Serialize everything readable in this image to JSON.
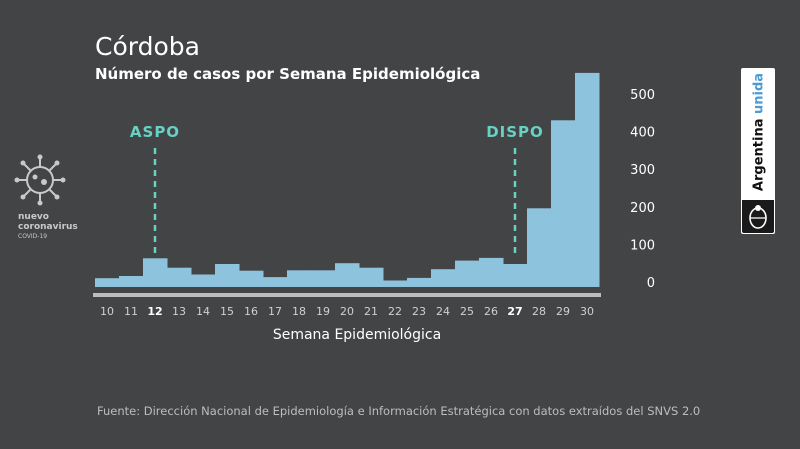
{
  "header": {
    "title": "Córdoba",
    "subtitle": "Número de casos por Semana Epidemiológica"
  },
  "logo": {
    "line1": "nuevo",
    "line2": "coronavirus",
    "line3": "COVID-19",
    "icon": "virus-icon"
  },
  "brand": {
    "word1": "Argentina",
    "word2": "unida",
    "seal_icon": "national-seal-icon"
  },
  "footer": {
    "source": "Fuente: Dirección Nacional de Epidemiología e Información Estratégica con datos extraídos del SNVS 2.0"
  },
  "colors": {
    "background": "#434446",
    "bar": "#8ec3dd",
    "axis": "#bdbdbd",
    "annotation": "#67d1c2"
  },
  "chart_data": {
    "type": "bar",
    "title": "Córdoba",
    "subtitle": "Número de casos por Semana Epidemiológica",
    "xlabel": "Semana Epidemiológica",
    "ylabel": "",
    "categories": [
      "10",
      "11",
      "12",
      "13",
      "14",
      "15",
      "16",
      "17",
      "18",
      "19",
      "20",
      "21",
      "22",
      "23",
      "24",
      "25",
      "26",
      "27",
      "28",
      "29",
      "30"
    ],
    "values": [
      10,
      16,
      63,
      38,
      20,
      48,
      30,
      13,
      31,
      31,
      50,
      38,
      4,
      11,
      34,
      57,
      64,
      48,
      196,
      430,
      556
    ],
    "y_ticks": [
      0,
      100,
      200,
      300,
      400,
      500
    ],
    "ylim": [
      -20,
      560
    ],
    "y_axis_side": "right",
    "highlight_ticks": [
      "12",
      "27"
    ],
    "annotations": [
      {
        "label": "ASPO",
        "category": "12"
      },
      {
        "label": "DISPO",
        "category": "27"
      }
    ],
    "grid": false,
    "legend": "none"
  }
}
